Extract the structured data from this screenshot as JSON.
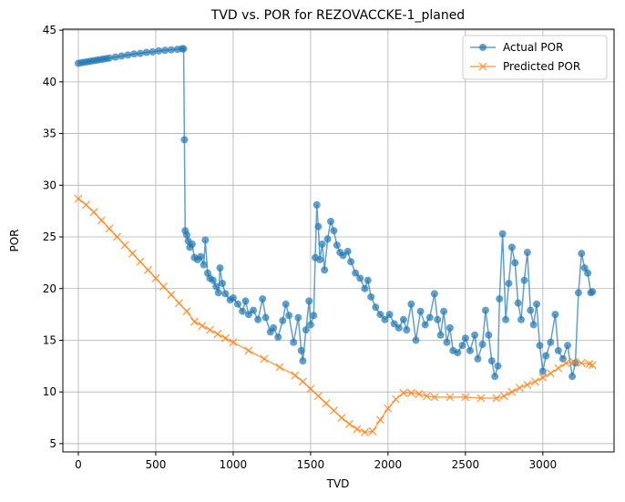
{
  "chart_data": {
    "type": "line",
    "title": "TVD vs. POR for REZOVACCKE-1_planed",
    "x_label": "TVD",
    "y_label": "POR",
    "xlim": [
      -100,
      3460
    ],
    "ylim": [
      4.2,
      45.1
    ],
    "xticks": [
      0,
      500,
      1000,
      1500,
      2000,
      2500,
      3000
    ],
    "yticks": [
      5,
      10,
      15,
      20,
      25,
      30,
      35,
      40,
      45
    ],
    "grid": true,
    "legend": "upper right",
    "series": [
      {
        "name": "Actual POR",
        "color": "#1f77b4",
        "marker": "o",
        "x": [
          0,
          20,
          40,
          60,
          80,
          100,
          120,
          140,
          160,
          180,
          200,
          240,
          280,
          320,
          360,
          400,
          440,
          480,
          520,
          560,
          600,
          640,
          670,
          680,
          685,
          690,
          700,
          710,
          720,
          735,
          750,
          770,
          790,
          810,
          820,
          835,
          850,
          870,
          890,
          905,
          915,
          930,
          950,
          980,
          1000,
          1030,
          1060,
          1080,
          1100,
          1130,
          1160,
          1190,
          1210,
          1240,
          1260,
          1290,
          1320,
          1340,
          1360,
          1390,
          1420,
          1440,
          1450,
          1470,
          1490,
          1500,
          1520,
          1530,
          1540,
          1550,
          1560,
          1575,
          1590,
          1610,
          1630,
          1650,
          1670,
          1690,
          1710,
          1740,
          1760,
          1790,
          1820,
          1850,
          1870,
          1890,
          1920,
          1950,
          1980,
          2010,
          2040,
          2070,
          2100,
          2120,
          2150,
          2180,
          2210,
          2240,
          2270,
          2300,
          2320,
          2340,
          2360,
          2380,
          2400,
          2420,
          2450,
          2480,
          2500,
          2530,
          2560,
          2580,
          2610,
          2630,
          2650,
          2670,
          2690,
          2710,
          2720,
          2740,
          2760,
          2780,
          2800,
          2820,
          2840,
          2860,
          2880,
          2900,
          2920,
          2940,
          2960,
          2980,
          3000,
          3020,
          3050,
          3080,
          3100,
          3130,
          3160,
          3190,
          3210,
          3230,
          3250,
          3270,
          3290,
          3310,
          3320
        ],
        "values": [
          41.8,
          41.85,
          41.9,
          41.95,
          42.0,
          42.05,
          42.1,
          42.15,
          42.2,
          42.25,
          42.3,
          42.4,
          42.5,
          42.6,
          42.7,
          42.75,
          42.85,
          42.9,
          43.0,
          43.05,
          43.1,
          43.15,
          43.2,
          43.2,
          34.4,
          25.6,
          25.2,
          24.6,
          24.0,
          24.3,
          23.0,
          22.8,
          23.1,
          22.3,
          24.7,
          21.5,
          21.0,
          20.8,
          20.2,
          19.6,
          22.0,
          20.5,
          19.5,
          18.9,
          19.1,
          18.5,
          17.8,
          18.8,
          17.5,
          17.9,
          17.0,
          19.0,
          17.2,
          15.8,
          16.2,
          15.3,
          16.9,
          18.5,
          17.4,
          14.8,
          17.2,
          14.0,
          13.0,
          16.0,
          18.8,
          16.5,
          17.4,
          23.0,
          28.1,
          26.0,
          22.8,
          24.3,
          21.8,
          24.8,
          26.5,
          25.6,
          24.2,
          23.5,
          23.2,
          23.6,
          22.6,
          21.5,
          21.0,
          20.0,
          20.8,
          19.2,
          18.2,
          17.5,
          17.0,
          17.5,
          16.6,
          16.2,
          17.0,
          16.0,
          18.5,
          15.0,
          17.8,
          16.5,
          17.2,
          19.5,
          17.0,
          15.5,
          17.8,
          14.8,
          16.2,
          14.0,
          13.8,
          14.5,
          15.2,
          14.0,
          15.5,
          13.2,
          14.6,
          17.9,
          15.5,
          13.0,
          11.5,
          12.5,
          19.0,
          25.3,
          17.0,
          20.5,
          24.0,
          22.5,
          18.6,
          17.0,
          20.8,
          23.5,
          17.9,
          16.5,
          18.5,
          14.5,
          12.0,
          13.5,
          14.8,
          17.5,
          14.0,
          13.2,
          14.5,
          11.5,
          12.8,
          19.6,
          23.4,
          22.0,
          21.5,
          19.6,
          19.7
        ]
      },
      {
        "name": "Predicted POR",
        "color": "#ff7f0e",
        "marker": "x",
        "x": [
          0,
          50,
          100,
          150,
          200,
          250,
          300,
          350,
          400,
          450,
          500,
          550,
          600,
          650,
          700,
          750,
          800,
          850,
          900,
          950,
          1000,
          1100,
          1200,
          1300,
          1400,
          1450,
          1500,
          1550,
          1600,
          1650,
          1700,
          1750,
          1800,
          1850,
          1900,
          1950,
          2000,
          2050,
          2100,
          2150,
          2200,
          2250,
          2300,
          2400,
          2500,
          2600,
          2700,
          2750,
          2800,
          2850,
          2900,
          2950,
          3000,
          3050,
          3100,
          3150,
          3200,
          3250,
          3300,
          3320
        ],
        "values": [
          28.7,
          28.1,
          27.4,
          26.6,
          25.8,
          25.0,
          24.2,
          23.4,
          22.6,
          21.8,
          21.0,
          20.2,
          19.4,
          18.6,
          17.8,
          16.8,
          16.4,
          16.0,
          15.6,
          15.2,
          14.8,
          14.0,
          13.2,
          12.4,
          11.6,
          11.0,
          10.3,
          9.6,
          8.9,
          8.2,
          7.5,
          6.9,
          6.4,
          6.1,
          6.2,
          7.3,
          8.4,
          9.3,
          9.9,
          9.9,
          9.8,
          9.6,
          9.5,
          9.5,
          9.5,
          9.4,
          9.4,
          9.6,
          10.0,
          10.4,
          10.7,
          11.0,
          11.4,
          11.8,
          12.3,
          12.8,
          12.9,
          12.8,
          12.7,
          12.6
        ]
      }
    ]
  }
}
